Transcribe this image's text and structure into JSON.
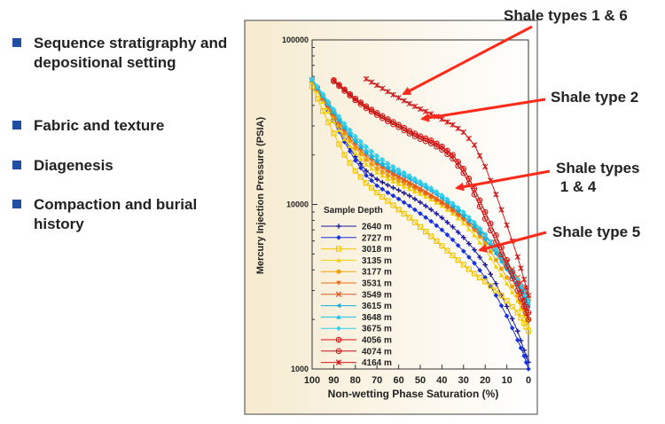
{
  "bullets": [
    {
      "icon": "square-bullet-icon",
      "text": "Sequence stratigraphy and depositional setting"
    },
    {
      "icon": "square-bullet-icon",
      "text": "Fabric and texture"
    },
    {
      "icon": "square-bullet-icon",
      "text": "Diagenesis"
    },
    {
      "icon": "square-bullet-icon",
      "text": "Compaction and burial history"
    }
  ],
  "annotations": [
    {
      "text": "Shale types 1 & 6"
    },
    {
      "text": "Shale type 2"
    },
    {
      "text": "Shale types\n 1 & 4"
    },
    {
      "text": "Shale type 5"
    }
  ],
  "colors": {
    "bullet": "#1f4ea3",
    "arrow": "#ff2a1a",
    "panel_bg": "#f7eed6"
  },
  "chart_data": {
    "type": "line",
    "title": "",
    "xlabel": "Non-wetting Phase Saturation (%)",
    "ylabel": "Mercury Injection Pressure (PSIA)",
    "xlim": [
      100,
      0
    ],
    "ylim": [
      1000,
      100000
    ],
    "yscale": "log",
    "grid": false,
    "xticks": [
      "100",
      "90",
      "80",
      "70",
      "60",
      "50",
      "40",
      "30",
      "20",
      "10",
      "0"
    ],
    "yticks": [
      "100000",
      "10000",
      "1000"
    ],
    "legend_title": "Sample Depth",
    "legend_position": "lower-left",
    "series": [
      {
        "name": "2640 m",
        "color": "#1a1aa0",
        "marker": "plus",
        "x": [
          100,
          95,
          90,
          85,
          80,
          75,
          70,
          65,
          60,
          55,
          50,
          45,
          40,
          35,
          30,
          25,
          20,
          15,
          10,
          5,
          2,
          0
        ],
        "y": [
          58000,
          45000,
          33000,
          25000,
          19500,
          16000,
          14200,
          13100,
          12200,
          11300,
          10300,
          9300,
          8300,
          7300,
          6300,
          5300,
          4300,
          3300,
          2400,
          1700,
          1300,
          1100
        ]
      },
      {
        "name": "2727 m",
        "color": "#1530e0",
        "marker": "diamond",
        "x": [
          100,
          95,
          90,
          85,
          80,
          75,
          70,
          65,
          60,
          55,
          50,
          45,
          40,
          35,
          30,
          25,
          20,
          15,
          10,
          5,
          2,
          0
        ],
        "y": [
          58000,
          43000,
          32000,
          24000,
          18500,
          15000,
          13000,
          11800,
          10800,
          9800,
          8800,
          7900,
          7000,
          6100,
          5200,
          4400,
          3600,
          2800,
          2100,
          1500,
          1200,
          1000
        ]
      },
      {
        "name": "3018 m",
        "color": "#f4c400",
        "marker": "square",
        "x": [
          100,
          95,
          90,
          85,
          80,
          75,
          70,
          65,
          60,
          55,
          50,
          45,
          40,
          35,
          30,
          25,
          20,
          15,
          10,
          5,
          2,
          0
        ],
        "y": [
          52000,
          37000,
          27000,
          20000,
          16000,
          13500,
          11800,
          10500,
          9300,
          8300,
          7300,
          6400,
          5600,
          4900,
          4300,
          3800,
          3400,
          3000,
          2600,
          2200,
          1900,
          1700
        ]
      },
      {
        "name": "3135 m",
        "color": "#f2d200",
        "marker": "triangle",
        "x": [
          100,
          95,
          90,
          85,
          80,
          75,
          70,
          65,
          60,
          55,
          50,
          45,
          40,
          35,
          30,
          25,
          20,
          15,
          10,
          5,
          2,
          0
        ],
        "y": [
          56000,
          42000,
          32000,
          25000,
          20500,
          17500,
          15600,
          14300,
          13300,
          12400,
          11600,
          10700,
          9800,
          8800,
          7700,
          6500,
          5300,
          4200,
          3300,
          2600,
          2100,
          1800
        ]
      },
      {
        "name": "3177 m",
        "color": "#f2a000",
        "marker": "circle",
        "x": [
          100,
          95,
          90,
          85,
          80,
          75,
          70,
          65,
          60,
          55,
          50,
          45,
          40,
          35,
          30,
          25,
          20,
          15,
          10,
          5,
          2,
          0
        ],
        "y": [
          57000,
          44000,
          34000,
          27000,
          22000,
          18700,
          16500,
          15000,
          13900,
          13000,
          12100,
          11200,
          10300,
          9300,
          8200,
          7000,
          5800,
          4600,
          3600,
          2800,
          2300,
          2000
        ]
      },
      {
        "name": "3531 m",
        "color": "#f06a10",
        "marker": "triangle-down",
        "x": [
          100,
          95,
          90,
          85,
          80,
          75,
          70,
          65,
          60,
          55,
          50,
          45,
          40,
          35,
          30,
          25,
          20,
          15,
          10,
          5,
          2,
          0
        ],
        "y": [
          57000,
          44000,
          35000,
          28000,
          23000,
          19800,
          17500,
          15800,
          14500,
          13300,
          12200,
          11100,
          10100,
          9100,
          8100,
          7100,
          6100,
          5100,
          4200,
          3400,
          2900,
          2500
        ]
      },
      {
        "name": "3549 m",
        "color": "#e05a20",
        "marker": "x",
        "x": [
          100,
          95,
          90,
          85,
          80,
          75,
          70,
          65,
          60,
          55,
          50,
          45,
          40,
          35,
          30,
          25,
          20,
          15,
          10,
          5,
          2,
          0
        ],
        "y": [
          57000,
          45000,
          36000,
          29000,
          24000,
          20500,
          18000,
          16200,
          14800,
          13600,
          12500,
          11400,
          10400,
          9400,
          8400,
          7400,
          6400,
          5400,
          4500,
          3600,
          3100,
          2700
        ]
      },
      {
        "name": "3615 m",
        "color": "#10b0e0",
        "marker": "triangle-left",
        "x": [
          100,
          95,
          90,
          85,
          80,
          75,
          70,
          65,
          60,
          55,
          50,
          45,
          40,
          35,
          30,
          25,
          20,
          15,
          10,
          5,
          2,
          0
        ],
        "y": [
          57000,
          45000,
          36000,
          29000,
          24000,
          20500,
          18200,
          16600,
          15400,
          14300,
          13200,
          12100,
          10900,
          9700,
          8500,
          7300,
          6100,
          5000,
          4000,
          3200,
          2700,
          2400
        ]
      },
      {
        "name": "3648 m",
        "color": "#20c0e8",
        "marker": "triangle",
        "x": [
          100,
          95,
          90,
          85,
          80,
          75,
          70,
          65,
          60,
          55,
          50,
          45,
          40,
          35,
          30,
          25,
          20,
          15,
          10,
          5,
          2,
          0
        ],
        "y": [
          57500,
          46000,
          37000,
          30000,
          25000,
          21500,
          19000,
          17200,
          15800,
          14600,
          13500,
          12400,
          11300,
          10100,
          8900,
          7700,
          6500,
          5300,
          4300,
          3400,
          2900,
          2500
        ]
      },
      {
        "name": "3675 m",
        "color": "#30d0f0",
        "marker": "diamond",
        "x": [
          100,
          95,
          90,
          85,
          80,
          75,
          70,
          65,
          60,
          55,
          50,
          45,
          40,
          35,
          30,
          25,
          20,
          15,
          10,
          5,
          2,
          0
        ],
        "y": [
          58000,
          47000,
          38000,
          31000,
          26000,
          22500,
          19800,
          17800,
          16300,
          15000,
          13800,
          12600,
          11400,
          10200,
          9000,
          7800,
          6600,
          5400,
          4400,
          3500,
          3000,
          2600
        ]
      },
      {
        "name": "4056 m",
        "color": "#e01010",
        "marker": "circle-plus",
        "x": [
          90,
          85,
          80,
          75,
          70,
          65,
          60,
          55,
          50,
          45,
          40,
          35,
          30,
          25,
          20,
          15,
          10,
          5,
          2,
          0
        ],
        "y": [
          57000,
          50000,
          44000,
          39500,
          36000,
          33000,
          30500,
          28000,
          26000,
          24500,
          22500,
          20000,
          16500,
          12500,
          9000,
          6500,
          4600,
          3300,
          2600,
          2200
        ]
      },
      {
        "name": "4074 m",
        "color": "#c01010",
        "marker": "circle-dot",
        "x": [
          90,
          85,
          80,
          75,
          70,
          65,
          60,
          55,
          50,
          45,
          40,
          35,
          30,
          25,
          20,
          15,
          10,
          5,
          2,
          0
        ],
        "y": [
          56000,
          49000,
          43000,
          38500,
          35000,
          32000,
          29500,
          27000,
          25000,
          23500,
          21500,
          19000,
          15500,
          11500,
          8200,
          5900,
          4200,
          3000,
          2400,
          2000
        ]
      },
      {
        "name": "4164 m",
        "color": "#d01818",
        "marker": "star",
        "x": [
          75,
          70,
          65,
          60,
          55,
          50,
          45,
          40,
          35,
          30,
          25,
          20,
          15,
          10,
          5,
          2,
          0
        ],
        "y": [
          58000,
          53000,
          48500,
          44500,
          41000,
          38000,
          35500,
          33000,
          30500,
          27500,
          23000,
          17000,
          11500,
          7500,
          4800,
          3500,
          2800
        ]
      }
    ]
  }
}
